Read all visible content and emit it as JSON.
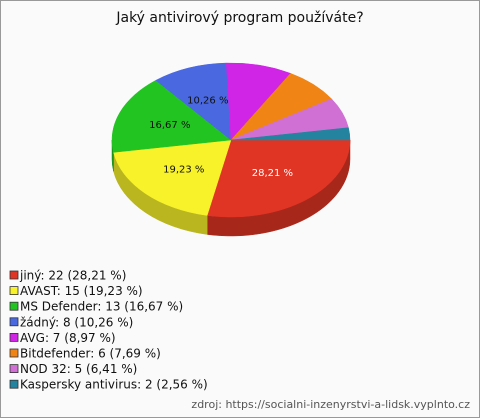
{
  "chart_data": {
    "type": "pie",
    "title": "Jaký antivirový program používáte?",
    "categories": [
      "jiný: 22 (28,21 %)",
      "AVAST: 15 (19,23 %)",
      "MS Defender: 13 (16,67 %)",
      "žádný: 8 (10,26 %)",
      "AVG: 7 (8,97 %)",
      "Bitdefender: 6 (7,69 %)",
      "NOD 32: 5 (6,41 %)",
      "Kaspersky antivirus: 2 (2,56 %)"
    ],
    "values": [
      28.21,
      19.23,
      16.67,
      10.26,
      8.97,
      7.69,
      6.41,
      2.56
    ],
    "value_labels": [
      "28,21 %",
      "19,23 %",
      "16,67 %",
      "10,26 %",
      null,
      null,
      null,
      null
    ],
    "colors": [
      "#e03424",
      "#f8f22a",
      "#22c422",
      "#4a68e0",
      "#d024e6",
      "#f08414",
      "#d070d4",
      "#24839e"
    ],
    "legend": "bottom-left",
    "source": "zdroj: https://socialni-inzenyrstvi-a-lidsk.vyplnto.cz"
  }
}
